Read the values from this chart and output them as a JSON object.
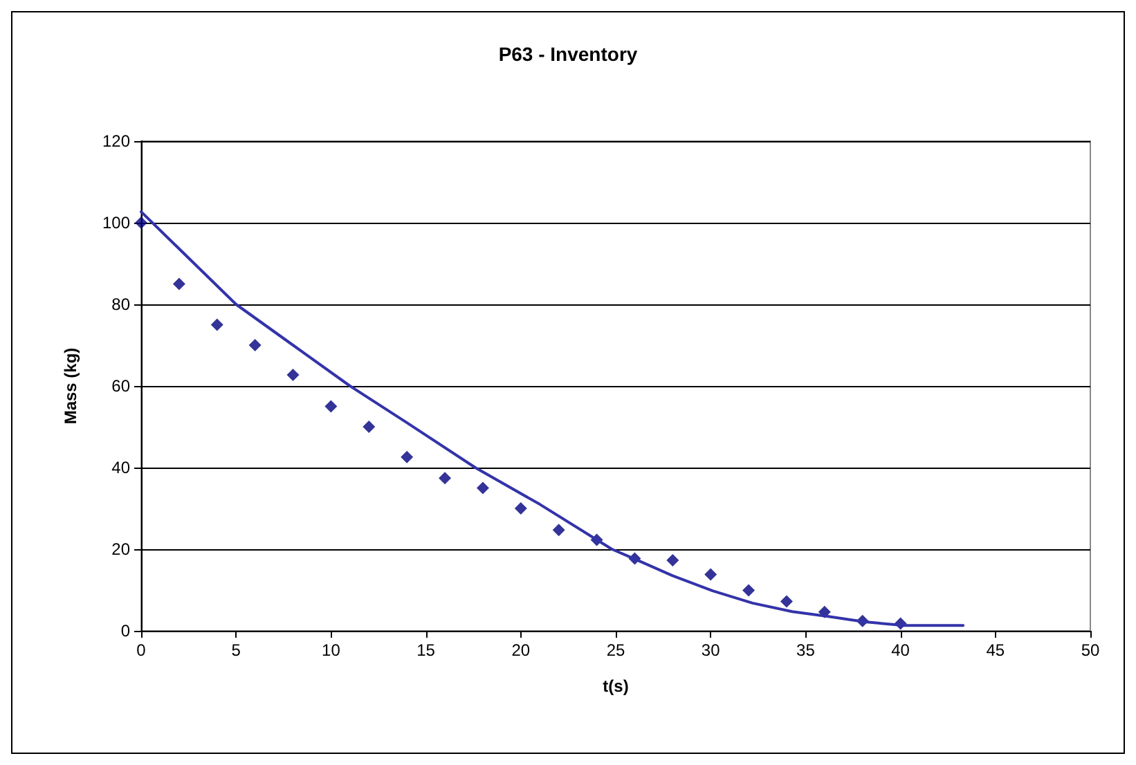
{
  "chart_data": {
    "type": "scatter",
    "title": "P63 - Inventory",
    "xlabel": "t(s)",
    "ylabel": "Mass (kg)",
    "xlim": [
      0,
      50
    ],
    "xticks": [
      0,
      5,
      10,
      15,
      20,
      25,
      30,
      35,
      40,
      45,
      50
    ],
    "ylim": [
      0,
      120
    ],
    "yticks": [
      0,
      20,
      40,
      60,
      80,
      100,
      120
    ],
    "grid": "y",
    "marker": "diamond",
    "series": [
      {
        "color": "#000080",
        "x": [
          0,
          2,
          4,
          6,
          8,
          10,
          12,
          14,
          16,
          18,
          20,
          22,
          24,
          26,
          28,
          30,
          32,
          34,
          36,
          38,
          40
        ],
        "values": [
          100,
          85,
          75,
          70,
          62.7,
          55,
          50,
          42.6,
          37.4,
          35,
          30,
          24.7,
          22.3,
          17.7,
          17.3,
          13.8,
          9.9,
          7.2,
          4.6,
          2.4,
          1.8
        ]
      },
      {
        "type": "line",
        "color": "#3333aa",
        "marker": "none",
        "x": [
          0,
          5,
          8,
          11,
          14,
          17.6,
          21,
          24.8,
          26.1,
          28,
          30.1,
          32.2,
          34.3,
          36.2,
          38.1,
          40.2,
          43.3
        ],
        "values": [
          102.7,
          80,
          70,
          60,
          51,
          40,
          31,
          20,
          17.4,
          13.5,
          9.8,
          6.8,
          4.7,
          3.5,
          2.2,
          1.3,
          1.3
        ]
      }
    ]
  }
}
